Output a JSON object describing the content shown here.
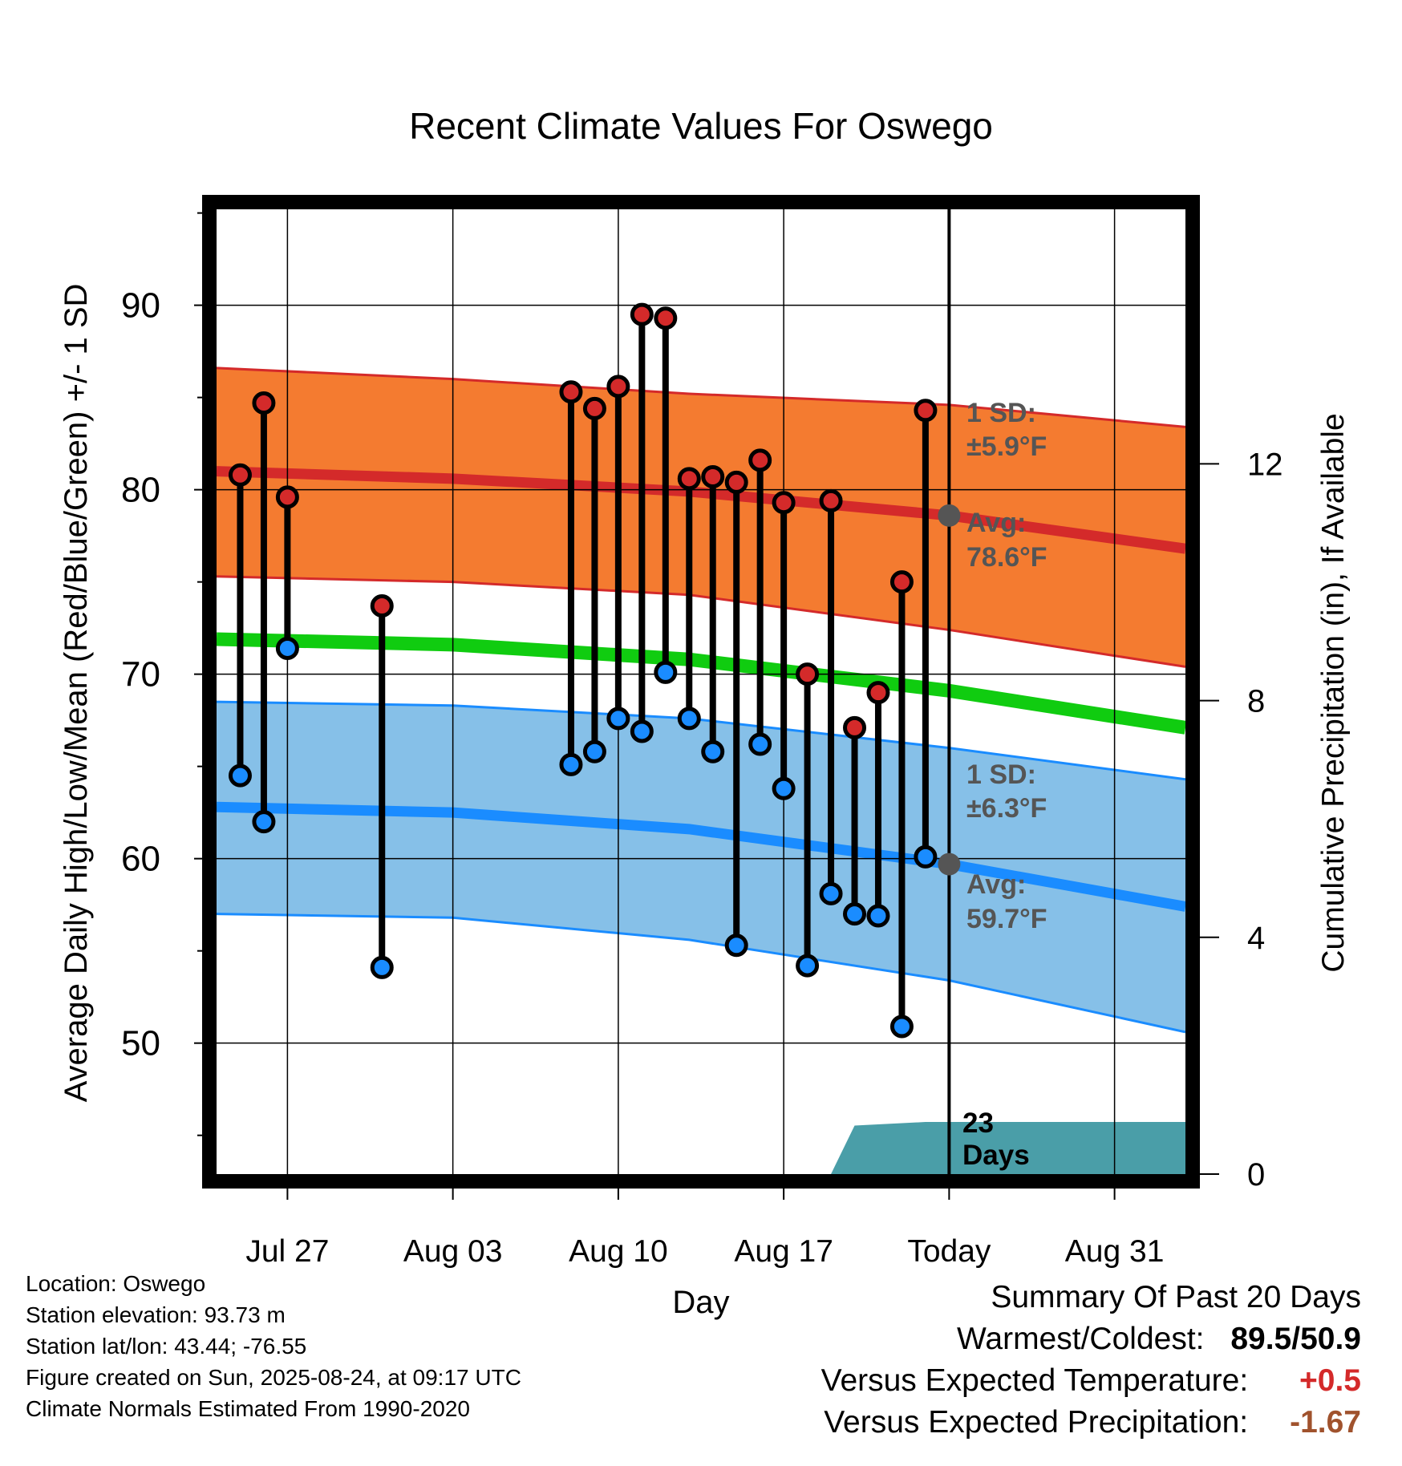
{
  "chart_data": {
    "type": "line",
    "title": "Recent Climate Values For Oswego",
    "xlabel": "Day",
    "ylabel": "Average Daily High/Low/Mean (Red/Blue/Green) +/- 1 SD",
    "y2label": "Cumulative Precipitation (in), If Available",
    "xlim": [
      "2025-07-24",
      "2025-09-03"
    ],
    "ylim": [
      42.9,
      95.2
    ],
    "y2lim": [
      0,
      16.3
    ],
    "grid": true,
    "x_tick_labels": [
      {
        "date": "2025-07-27",
        "label": "Jul 27"
      },
      {
        "date": "2025-08-03",
        "label": "Aug 03"
      },
      {
        "date": "2025-08-10",
        "label": "Aug 10"
      },
      {
        "date": "2025-08-17",
        "label": "Aug 17"
      },
      {
        "date": "2025-08-24",
        "label": "Today"
      },
      {
        "date": "2025-08-31",
        "label": "Aug 31"
      }
    ],
    "y_ticks": [
      50,
      60,
      70,
      80,
      90
    ],
    "y2_ticks": [
      0,
      4,
      8,
      12
    ],
    "today": "2025-08-24",
    "today_label": "23\nDays",
    "observed": {
      "dates": [
        "2025-07-25",
        "2025-07-26",
        "2025-07-27",
        "2025-07-31",
        "2025-08-08",
        "2025-08-09",
        "2025-08-10",
        "2025-08-11",
        "2025-08-12",
        "2025-08-13",
        "2025-08-14",
        "2025-08-15",
        "2025-08-16",
        "2025-08-17",
        "2025-08-18",
        "2025-08-19",
        "2025-08-20",
        "2025-08-21",
        "2025-08-22",
        "2025-08-23"
      ],
      "high": [
        80.8,
        84.7,
        79.6,
        73.7,
        85.3,
        84.4,
        85.6,
        89.5,
        89.3,
        80.6,
        80.7,
        80.4,
        81.6,
        79.3,
        70.0,
        79.4,
        67.1,
        69.0,
        75.0,
        84.3
      ],
      "low": [
        64.5,
        62.0,
        71.4,
        54.1,
        65.1,
        65.8,
        67.6,
        66.9,
        70.1,
        67.6,
        65.8,
        55.3,
        66.2,
        63.8,
        54.2,
        58.1,
        57.0,
        56.9,
        50.9,
        60.1
      ]
    },
    "normals": {
      "dates": [
        "2025-07-24",
        "2025-08-03",
        "2025-08-13",
        "2025-08-24",
        "2025-09-03"
      ],
      "high_avg": [
        81.0,
        80.6,
        79.9,
        78.6,
        76.8
      ],
      "high_upper": [
        86.6,
        86.0,
        85.2,
        84.6,
        83.4
      ],
      "high_lower": [
        75.3,
        75.0,
        74.3,
        72.4,
        70.4
      ],
      "mean": [
        71.9,
        71.6,
        70.8,
        69.1,
        67.1
      ],
      "low_avg": [
        62.8,
        62.5,
        61.6,
        59.7,
        57.4
      ],
      "low_upper": [
        68.5,
        68.3,
        67.6,
        66.0,
        64.3
      ],
      "low_lower": [
        57.0,
        56.8,
        55.6,
        53.4,
        50.6
      ]
    },
    "precipitation": {
      "dates": [
        "2025-07-24",
        "2025-08-19",
        "2025-08-20",
        "2025-08-23",
        "2025-09-03"
      ],
      "cumulative": [
        0.0,
        0.0,
        0.82,
        0.88,
        0.88
      ]
    },
    "annotations": {
      "high_sd": [
        "1 SD:",
        "±5.9°F"
      ],
      "high_avg": [
        "Avg:",
        "78.6°F"
      ],
      "low_sd": [
        "1 SD:",
        "±6.3°F"
      ],
      "low_avg": [
        "Avg:",
        "59.7°F"
      ]
    },
    "colors": {
      "high_band": "#f47b30",
      "high_line": "#d42a2a",
      "mean_line": "#10cc10",
      "low_band": "#86c0e8",
      "low_line": "#1a8cff",
      "precip": "#4a9ea8",
      "high_marker": "#d42a2a",
      "low_marker": "#1a8cff",
      "annotation": "#555555"
    }
  },
  "info": {
    "location": "Location: Oswego",
    "elevation": "Station elevation: 93.73 m",
    "latlon": "Station lat/lon: 43.44; -76.55",
    "created": "Figure created on Sun, 2025-08-24, at 09:17 UTC",
    "normals": "Climate Normals Estimated From 1990-2020"
  },
  "summary": {
    "title": "Summary Of Past 20 Days",
    "warmest_label": "Warmest/Coldest:",
    "warmest_value": "89.5/50.9",
    "temp_label": "Versus Expected Temperature:",
    "temp_value": "+0.5",
    "temp_color": "#d42a2a",
    "precip_label": "Versus Expected Precipitation:",
    "precip_value": "-1.67",
    "precip_color": "#a0522d"
  }
}
